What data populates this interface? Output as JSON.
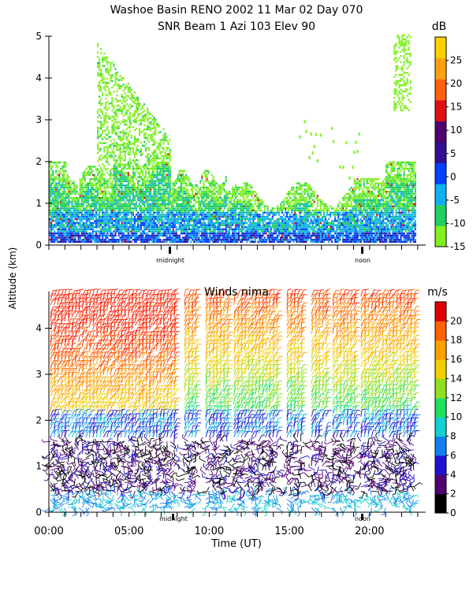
{
  "title_line1": "Washoe Basin RENO 2002  11 Mar 02 Day 070",
  "title_line2": "SNR Beam 1 Azi 103 Elev 90",
  "y_axis_label": "Altitude (km)",
  "x_axis_label": "Time (UT)",
  "marker_midnight": "midnight",
  "marker_noon": "noon",
  "panel2_title": "Winds nima",
  "colors": {
    "snr": [
      "#80f020",
      "#20d060",
      "#10b0f0",
      "#0040ff",
      "#301090",
      "#500070",
      "#e01010",
      "#ff6010",
      "#ffa010",
      "#ffd000"
    ],
    "wind": [
      "#000000",
      "#500070",
      "#2010d0",
      "#1080f0",
      "#10d0d0",
      "#20e060",
      "#90e020",
      "#f0d000",
      "#ffa000",
      "#ff6000",
      "#ff2000",
      "#e00000"
    ]
  },
  "chart_data": [
    {
      "type": "heatmap",
      "name": "SNR",
      "colorbar_label": "dB",
      "colorbar_ticks": [
        "-15",
        "-10",
        "-5",
        "0",
        "5",
        "10",
        "15",
        "20",
        "25"
      ],
      "colorbar_range": [
        -15,
        30
      ],
      "yticks": [
        "0",
        "1",
        "2",
        "3",
        "4",
        "5"
      ],
      "ylim": [
        0,
        5
      ],
      "xlim": [
        0,
        23.5
      ]
    },
    {
      "type": "barbs",
      "name": "Winds nima",
      "colorbar_label": "m/s",
      "colorbar_ticks": [
        "0",
        "2",
        "4",
        "6",
        "8",
        "10",
        "12",
        "14",
        "16",
        "18",
        "20"
      ],
      "colorbar_range": [
        0,
        22
      ],
      "yticks": [
        "0",
        "1",
        "2",
        "3",
        "4"
      ],
      "ylim": [
        0,
        4.8
      ],
      "xticks": [
        "00:00",
        "05:00",
        "10:00",
        "15:00",
        "20:00"
      ],
      "xtick_values": [
        0,
        5,
        10,
        15,
        20
      ],
      "xlim": [
        0,
        23.5
      ]
    }
  ]
}
